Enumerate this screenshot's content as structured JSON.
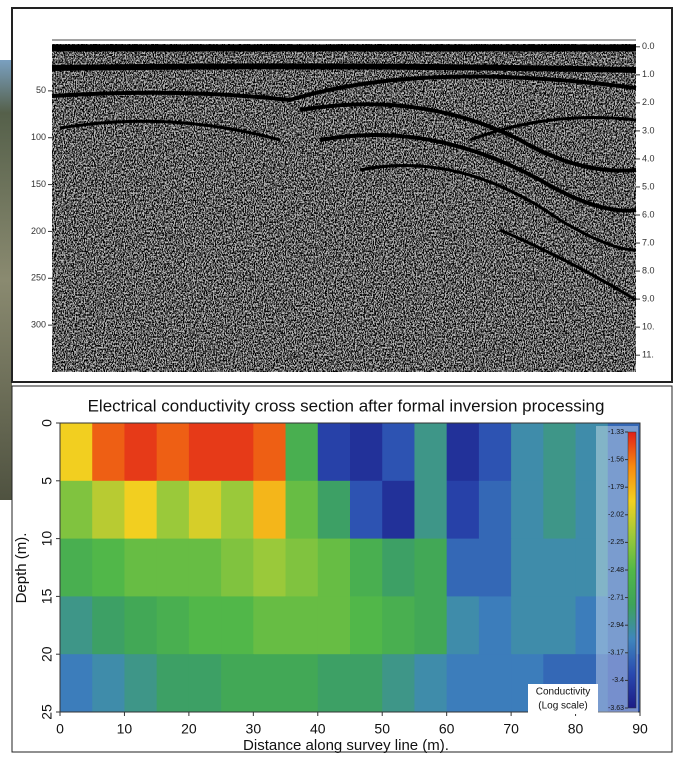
{
  "radargram": {
    "ylim": [
      0,
      350
    ],
    "yticks": [
      50,
      100,
      150,
      200,
      250,
      300
    ],
    "y2lim": [
      -0.1,
      11.6
    ],
    "y2ticks": [
      {
        "value": 0,
        "label": "0.0"
      },
      {
        "value": 1,
        "label": "1.0"
      },
      {
        "value": 2,
        "label": "2.0"
      },
      {
        "value": 3,
        "label": "3.0"
      },
      {
        "value": 4,
        "label": "4.0"
      },
      {
        "value": 5,
        "label": "5.0"
      },
      {
        "value": 6,
        "label": "6.0"
      },
      {
        "value": 7,
        "label": "7.0"
      },
      {
        "value": 8,
        "label": "8.0"
      },
      {
        "value": 9,
        "label": "9.0"
      },
      {
        "value": 10,
        "label": "10."
      },
      {
        "value": 11,
        "label": "11."
      }
    ]
  },
  "chart_data": {
    "type": "heatmap",
    "title": "Electrical conductivity cross section after formal inversion processing",
    "x_label": "Distance along survey line (m).",
    "y_label": "Depth (m).",
    "xlim": [
      0,
      90
    ],
    "xticks": [
      0,
      10,
      20,
      30,
      40,
      50,
      60,
      70,
      80,
      90
    ],
    "ylim": [
      25,
      0
    ],
    "yticks": [
      0,
      5,
      10,
      15,
      20,
      25
    ],
    "xbins": [
      0,
      5,
      10,
      15,
      20,
      25,
      30,
      35,
      40,
      45,
      50,
      55,
      60,
      65,
      70,
      75,
      80,
      85,
      90
    ],
    "ybins": [
      0,
      5,
      10,
      15,
      20,
      25
    ],
    "z": [
      [
        -1.9,
        -1.5,
        -1.4,
        -1.5,
        -1.4,
        -1.4,
        -1.5,
        -2.6,
        -3.4,
        -3.5,
        -3.3,
        -2.9,
        -3.5,
        -3.3,
        -3.0,
        -2.9,
        -3.0,
        -3.2
      ],
      [
        -2.3,
        -2.1,
        -1.9,
        -2.2,
        -2.0,
        -2.2,
        -1.8,
        -2.4,
        -2.8,
        -3.3,
        -3.5,
        -2.9,
        -3.4,
        -3.2,
        -3.0,
        -2.9,
        -3.0,
        -3.2
      ],
      [
        -2.6,
        -2.5,
        -2.4,
        -2.4,
        -2.4,
        -2.3,
        -2.2,
        -2.3,
        -2.4,
        -2.6,
        -2.8,
        -2.7,
        -3.2,
        -3.2,
        -3.0,
        -3.0,
        -3.0,
        -3.2
      ],
      [
        -2.9,
        -2.8,
        -2.7,
        -2.6,
        -2.5,
        -2.5,
        -2.4,
        -2.4,
        -2.4,
        -2.5,
        -2.6,
        -2.7,
        -3.0,
        -3.1,
        -3.0,
        -3.0,
        -3.1,
        -3.2
      ],
      [
        -3.1,
        -3.0,
        -2.9,
        -2.8,
        -2.8,
        -2.7,
        -2.7,
        -2.7,
        -2.8,
        -2.8,
        -2.9,
        -3.0,
        -3.1,
        -3.1,
        -3.1,
        -3.2,
        -3.2,
        -3.3
      ]
    ],
    "zlim": [
      -3.63,
      -1.33
    ],
    "colorscale": [
      "#1c1c86",
      "#2a4ab0",
      "#3f86bd",
      "#3da35a",
      "#52b848",
      "#9cc93a",
      "#f2d020",
      "#f88a10",
      "#e0201a"
    ],
    "colorbar_title": [
      "Conductivity",
      "(Log scale)"
    ],
    "colorbar_ticks": [
      -1.33,
      -1.56,
      -1.79,
      -2.02,
      -2.25,
      -2.48,
      -2.71,
      -2.94,
      -3.17,
      -3.4,
      -3.63
    ]
  }
}
